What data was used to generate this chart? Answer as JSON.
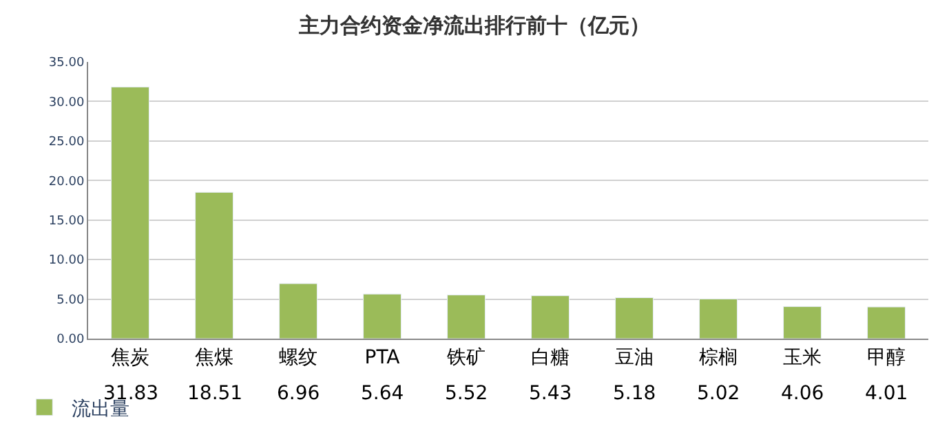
{
  "chart_data": {
    "type": "bar",
    "title": "主力合约资金净流出排行前十（亿元）",
    "categories": [
      "焦炭",
      "焦煤",
      "螺纹",
      "PTA",
      "铁矿",
      "白糖",
      "豆油",
      "棕榈",
      "玉米",
      "甲醇"
    ],
    "series": [
      {
        "name": "流出量",
        "color": "#9bbb59",
        "values": [
          31.83,
          18.51,
          6.96,
          5.64,
          5.52,
          5.43,
          5.18,
          5.02,
          4.06,
          4.01
        ]
      }
    ],
    "ylim": [
      0,
      35
    ],
    "yticks": [
      {
        "value": 0,
        "label": "0.00"
      },
      {
        "value": 5,
        "label": "5.00"
      },
      {
        "value": 10,
        "label": "10.00"
      },
      {
        "value": 15,
        "label": "15.00"
      },
      {
        "value": 20,
        "label": "20.00"
      },
      {
        "value": 25,
        "label": "25.00"
      },
      {
        "value": 30,
        "label": "30.00"
      },
      {
        "value": 35,
        "label": "35.00"
      }
    ],
    "grid": "y",
    "legend": "bottom left",
    "data_labels": true
  }
}
